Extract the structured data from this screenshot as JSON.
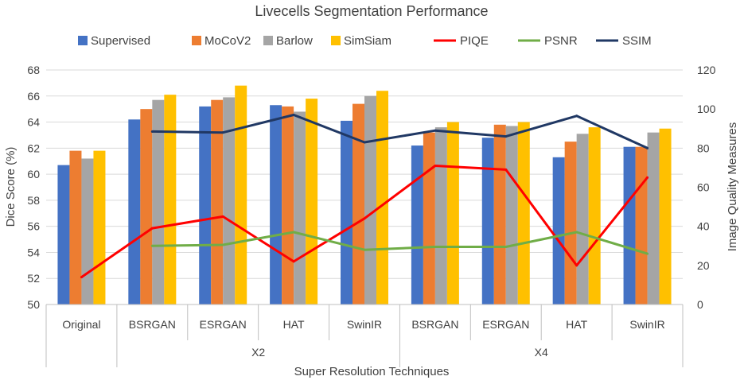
{
  "chart_data": {
    "type": "bar+line",
    "title": "Livecells Segmentation Performance",
    "xlabel": "Super Resolution Techniques",
    "ylabel": "Dice Score (%)",
    "y2label": "Image Quality Measures",
    "ylim": [
      50,
      68
    ],
    "yticks": [
      50,
      52,
      54,
      56,
      58,
      60,
      62,
      64,
      66,
      68
    ],
    "y2lim": [
      0,
      120
    ],
    "y2ticks": [
      0,
      20,
      40,
      60,
      80,
      100,
      120
    ],
    "legend_position": "top",
    "categories": [
      "Original",
      "BSRGAN",
      "ESRGAN",
      "HAT",
      "SwinIR",
      "BSRGAN",
      "ESRGAN",
      "HAT",
      "SwinIR"
    ],
    "groups": [
      {
        "label": "X2",
        "start": 1,
        "end": 4
      },
      {
        "label": "X4",
        "start": 5,
        "end": 8
      }
    ],
    "bar_series": [
      {
        "name": "Supervised",
        "color": "#4472C4",
        "values": [
          60.7,
          64.2,
          65.2,
          65.3,
          64.1,
          62.2,
          62.8,
          61.3,
          62.1
        ]
      },
      {
        "name": "MoCoV2",
        "color": "#ED7D31",
        "values": [
          61.8,
          65.0,
          65.7,
          65.2,
          65.4,
          63.2,
          63.8,
          62.5,
          62.1
        ]
      },
      {
        "name": "Barlow",
        "color": "#A5A5A5",
        "values": [
          61.2,
          65.7,
          65.9,
          64.8,
          66.0,
          63.6,
          63.7,
          63.1,
          63.2
        ]
      },
      {
        "name": "SimSiam",
        "color": "#FFC000",
        "values": [
          61.8,
          66.1,
          66.8,
          65.8,
          66.4,
          64.0,
          64.0,
          63.6,
          63.5
        ]
      }
    ],
    "line_series": [
      {
        "name": "PIQE",
        "color": "#FF0000",
        "values": [
          14,
          39,
          45,
          22,
          44,
          71,
          69,
          20,
          65
        ]
      },
      {
        "name": "PSNR",
        "color": "#70AD47",
        "values": [
          null,
          30,
          30.5,
          37,
          28,
          29.5,
          29.5,
          37,
          26
        ]
      },
      {
        "name": "SSIM",
        "color": "#203864",
        "values": [
          null,
          88.5,
          88,
          97,
          83,
          89,
          86,
          96.5,
          80
        ]
      }
    ]
  }
}
